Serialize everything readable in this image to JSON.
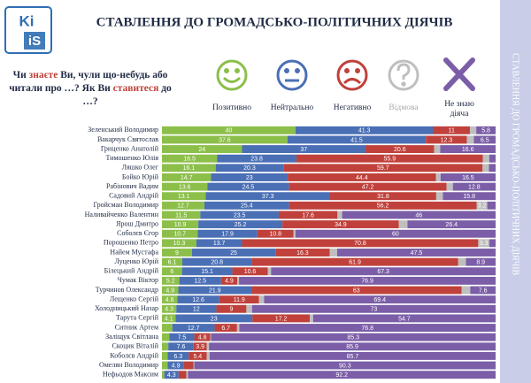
{
  "logo": [
    "Ki",
    "iS"
  ],
  "sidebar": "СТАВЛЕННЯ ДО ГРОМАДСЬКО-ПОЛІТИЧНИХ ДІЯЧІВ",
  "question": [
    "Чи ",
    "знаєте",
    " Ви, чули що-небудь або читали про …? Як Ви ",
    "ставитеся",
    " до …?"
  ],
  "chart_data": {
    "type": "bar",
    "orientation": "horizontal",
    "stacked": true,
    "title": "СТАВЛЕННЯ ДО ГРОМАДСЬКО-ПОЛІТИЧНИХ ДІЯЧІВ",
    "xlim": [
      0,
      100
    ],
    "categories": [
      "Зеленський Володимир",
      "Вакарчук Святослав",
      "Гриценко Анатолій",
      "Тимошенко Юлія",
      "Ляшко Олег",
      "Бойко Юрій",
      "Рабінович Вадим",
      "Садовий Андрій",
      "Гройсман Володимир",
      "Наливайченко Валентин",
      "Ярош Дмитро",
      "Соболєв Єгор",
      "Порошенко Петро",
      "Найем Мустафа",
      "Луценко Юрій",
      "Білецький Андрій",
      "Чумак Віктор",
      "Турчинов Олександр",
      "Лещенко Сергій",
      "Холодницький Назар",
      "Тарута Сергій",
      "Ситник Артем",
      "Заліщук Світлана",
      "Скоцик Віталій",
      "Коболєв Андрій",
      "Омелян Володимир",
      "Нефьодов Максим"
    ],
    "series": [
      {
        "name": "Позитивно",
        "color": "#8cbf4a",
        "values": [
          40.0,
          37.6,
          24.0,
          16.5,
          16.1,
          14.7,
          13.6,
          13.1,
          12.7,
          11.5,
          10.9,
          10.7,
          10.3,
          9.0,
          6.1,
          6.0,
          5.2,
          4.9,
          4.6,
          4.3,
          4.1,
          3.1,
          2.2,
          1.9,
          1.7,
          1.7,
          0.7
        ]
      },
      {
        "name": "Нейтрально",
        "color": "#4a6fb5",
        "values": [
          41.3,
          41.5,
          37.0,
          23.8,
          20.3,
          23.0,
          24.5,
          37.3,
          25.4,
          23.5,
          25.2,
          17.9,
          13.7,
          25.0,
          20.8,
          15.1,
          12.5,
          21.9,
          12.6,
          12.0,
          23.0,
          12.7,
          7.5,
          7.6,
          6.3,
          4.9,
          4.3
        ]
      },
      {
        "name": "Негативно",
        "color": "#c0413b",
        "values": [
          11.0,
          12.3,
          20.6,
          55.9,
          59.7,
          44.4,
          47.2,
          31.8,
          56.2,
          17.6,
          34.9,
          10.8,
          70.8,
          16.3,
          61.9,
          10.6,
          4.9,
          63.0,
          11.9,
          9.0,
          17.2,
          6.7,
          4.8,
          3.9,
          5.4,
          2.9,
          2.3
        ]
      },
      {
        "name": "Відмова",
        "color": "#bfbfbf",
        "values": [
          1.9,
          2.1,
          1.8,
          1.9,
          1.9,
          1.4,
          1.9,
          2.0,
          3.2,
          1.4,
          2.6,
          0.6,
          3.3,
          2.2,
          2.3,
          1.0,
          0.5,
          2.6,
          1.5,
          1.7,
          1.0,
          0.7,
          0.2,
          0.7,
          0.9,
          0.2,
          0.5
        ]
      },
      {
        "name": "Не знаю діяча",
        "color": "#7b5ea7",
        "values": [
          5.8,
          6.5,
          16.6,
          1.9,
          2.0,
          16.5,
          12.8,
          15.8,
          2.5,
          46.0,
          26.4,
          60.0,
          1.9,
          47.5,
          8.9,
          67.3,
          76.9,
          7.6,
          69.4,
          73.0,
          54.7,
          76.8,
          85.3,
          85.9,
          85.7,
          90.3,
          92.2
        ]
      }
    ]
  }
}
